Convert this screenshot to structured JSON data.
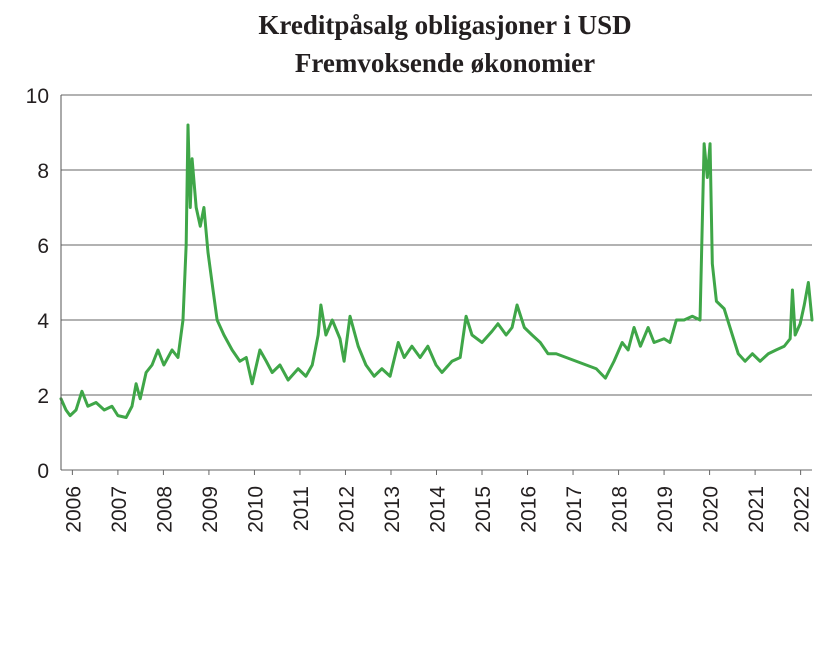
{
  "chart_data": {
    "type": "line",
    "title": "Kreditpåsalg obligasjoner i USD",
    "subtitle": "Fremvoksende økonomier",
    "xlim": [
      2005.75,
      2022.25
    ],
    "xticks": [
      2006,
      2007,
      2008,
      2009,
      2010,
      2011,
      2012,
      2013,
      2014,
      2015,
      2016,
      2017,
      2018,
      2019,
      2020,
      2021,
      2022
    ],
    "ylim": [
      0,
      10
    ],
    "yticks": [
      0,
      2,
      4,
      6,
      8,
      10
    ],
    "grid": true,
    "x": [
      2005.75,
      2005.86,
      2005.95,
      2006.08,
      2006.21,
      2006.34,
      2006.52,
      2006.7,
      2006.87,
      2007.0,
      2007.18,
      2007.31,
      2007.4,
      2007.49,
      2007.62,
      2007.75,
      2007.88,
      2008.01,
      2008.19,
      2008.32,
      2008.43,
      2008.5,
      2008.54,
      2008.59,
      2008.63,
      2008.72,
      2008.81,
      2008.89,
      2008.98,
      2009.09,
      2009.18,
      2009.33,
      2009.51,
      2009.68,
      2009.82,
      2009.95,
      2010.12,
      2010.26,
      2010.39,
      2010.56,
      2010.74,
      2010.96,
      2011.13,
      2011.27,
      2011.4,
      2011.46,
      2011.57,
      2011.71,
      2011.88,
      2011.97,
      2012.1,
      2012.28,
      2012.45,
      2012.63,
      2012.8,
      2012.98,
      2013.16,
      2013.29,
      2013.46,
      2013.64,
      2013.81,
      2013.99,
      2014.12,
      2014.34,
      2014.52,
      2014.65,
      2014.78,
      2015.0,
      2015.22,
      2015.35,
      2015.53,
      2015.66,
      2015.77,
      2015.93,
      2016.1,
      2016.28,
      2016.45,
      2016.63,
      2016.85,
      2017.07,
      2017.29,
      2017.51,
      2017.71,
      2017.9,
      2018.08,
      2018.21,
      2018.34,
      2018.48,
      2018.65,
      2018.78,
      2019.0,
      2019.13,
      2019.27,
      2019.44,
      2019.62,
      2019.79,
      2019.88,
      2019.95,
      2020.01,
      2020.06,
      2020.15,
      2020.32,
      2020.5,
      2020.63,
      2020.78,
      2020.94,
      2021.11,
      2021.29,
      2021.46,
      2021.64,
      2021.77,
      2021.82,
      2021.88,
      2021.99,
      2022.08,
      2022.17,
      2022.25
    ],
    "series": [
      {
        "color": "#3fa648",
        "values": [
          1.9,
          1.6,
          1.45,
          1.6,
          2.1,
          1.7,
          1.8,
          1.6,
          1.7,
          1.45,
          1.4,
          1.7,
          2.3,
          1.9,
          2.6,
          2.8,
          3.2,
          2.8,
          3.2,
          3.0,
          4.0,
          6.0,
          9.2,
          7.0,
          8.3,
          7.0,
          6.5,
          7.0,
          5.8,
          4.8,
          4.0,
          3.6,
          3.2,
          2.9,
          3.0,
          2.3,
          3.2,
          2.9,
          2.6,
          2.8,
          2.4,
          2.7,
          2.5,
          2.8,
          3.6,
          4.4,
          3.6,
          4.0,
          3.5,
          2.9,
          4.1,
          3.3,
          2.8,
          2.5,
          2.7,
          2.5,
          3.4,
          3.0,
          3.3,
          3.0,
          3.3,
          2.8,
          2.6,
          2.9,
          3.0,
          4.1,
          3.6,
          3.4,
          3.7,
          3.9,
          3.6,
          3.8,
          4.4,
          3.8,
          3.6,
          3.4,
          3.1,
          3.1,
          3.0,
          2.9,
          2.8,
          2.7,
          2.45,
          2.9,
          3.4,
          3.2,
          3.8,
          3.3,
          3.8,
          3.4,
          3.5,
          3.4,
          4.0,
          4.0,
          4.1,
          4.0,
          8.7,
          7.8,
          8.7,
          5.5,
          4.5,
          4.3,
          3.6,
          3.1,
          2.9,
          3.1,
          2.9,
          3.1,
          3.2,
          3.3,
          3.5,
          4.8,
          3.6,
          3.9,
          4.4,
          5.0,
          4.0
        ]
      }
    ]
  }
}
